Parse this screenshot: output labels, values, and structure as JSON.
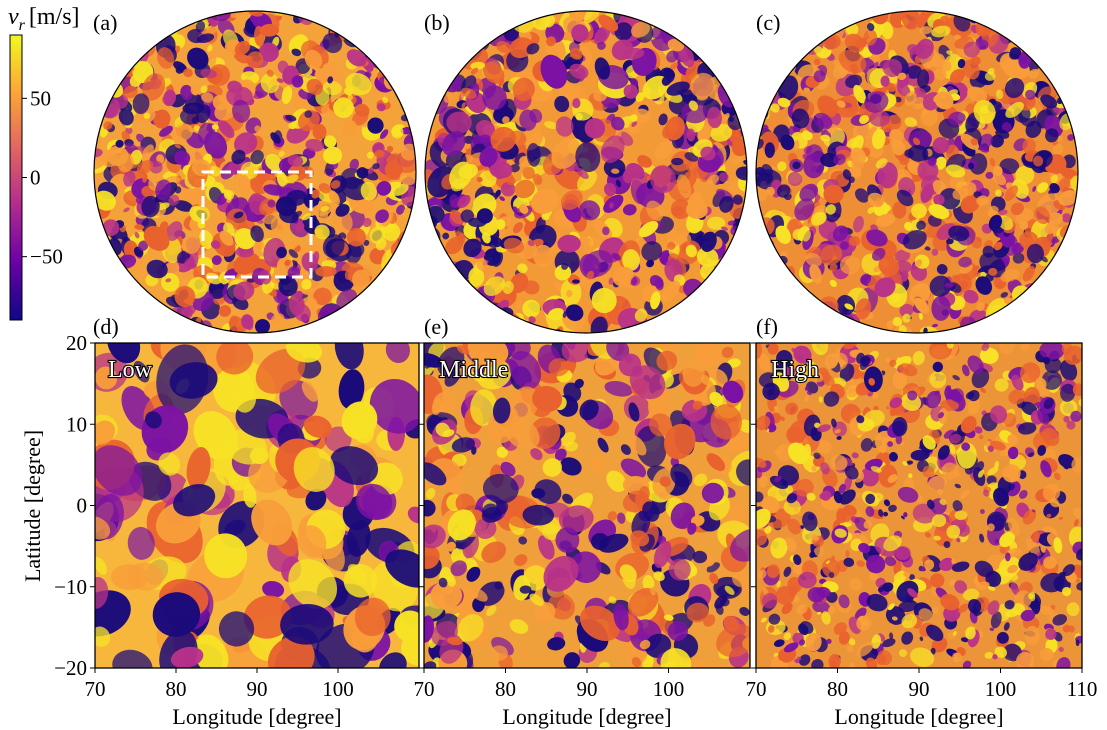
{
  "chart_data": [
    {
      "type": "heatmap",
      "panel": "(a)",
      "projection": "orthographic sphere",
      "inset_box": "white dashed square marking the region shown in (d)-(f)"
    },
    {
      "type": "heatmap",
      "panel": "(b)",
      "projection": "orthographic sphere"
    },
    {
      "type": "heatmap",
      "panel": "(c)",
      "projection": "orthographic sphere"
    },
    {
      "type": "heatmap",
      "panel": "(d)",
      "label": "Low",
      "xlim": [
        70,
        110
      ],
      "ylim": [
        -20,
        20
      ],
      "structure_scale": "smooth"
    },
    {
      "type": "heatmap",
      "panel": "(e)",
      "label": "Middle",
      "xlim": [
        70,
        110
      ],
      "ylim": [
        -20,
        20
      ],
      "structure_scale": "medium"
    },
    {
      "type": "heatmap",
      "panel": "(f)",
      "label": "High",
      "xlim": [
        70,
        110
      ],
      "ylim": [
        -20,
        20
      ],
      "structure_scale": "fine"
    }
  ],
  "colorbar": {
    "title_symbol": "v",
    "title_sub": "r",
    "title_unit": "[m/s]",
    "ticks": [
      50,
      0,
      -50
    ],
    "tick_labels": [
      "50",
      "0",
      "−50"
    ],
    "range": [
      -90,
      90
    ],
    "colormap": "plasma"
  },
  "panels": {
    "letters": [
      "(a)",
      "(b)",
      "(c)",
      "(d)",
      "(e)",
      "(f)"
    ],
    "res_labels": [
      "Low",
      "Middle",
      "High"
    ]
  },
  "axes": {
    "xlabel": "Longitude [degree]",
    "ylabel": "Latitude [degree]",
    "x_ticks_d": [
      "70",
      "80",
      "90",
      "100"
    ],
    "x_ticks_e": [
      "70",
      "80",
      "90",
      "100"
    ],
    "x_ticks_f": [
      "70",
      "80",
      "90",
      "100",
      "110"
    ],
    "y_ticks": [
      "20",
      "10",
      "0",
      "−10",
      "−20"
    ]
  },
  "colors": {
    "dark": "#1a0a7a",
    "purple": "#7b12a4",
    "magenta": "#b83289",
    "orange": "#e9612e",
    "light_orange": "#f89d3a",
    "yellow": "#f7e225",
    "box": "#ffffff"
  }
}
